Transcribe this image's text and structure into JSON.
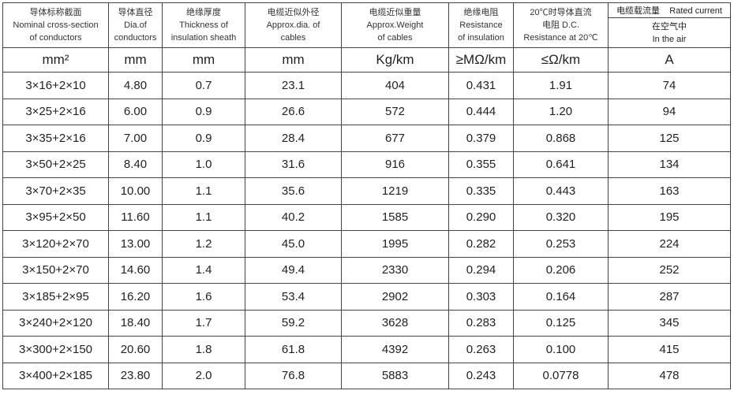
{
  "headers": [
    {
      "zh": "导体标称截面",
      "en1": "Nominal cross-section",
      "en2": "of conductors",
      "unit": "mm²"
    },
    {
      "zh": "导体直径",
      "en1": "Dia.of",
      "en2": "conductors",
      "unit": "mm"
    },
    {
      "zh": "绝缘厚度",
      "en1": "Thickness of",
      "en2": "insulation sheath",
      "unit": "mm"
    },
    {
      "zh": "电缆近似外径",
      "en1": "Approx.dia. of",
      "en2": "cables",
      "unit": "mm"
    },
    {
      "zh": "电缆近似重量",
      "en1": "Approx.Weight",
      "en2": "of cables",
      "unit": "Kg/km"
    },
    {
      "zh": "绝缘电阻",
      "en1": "Resistance",
      "en2": "of insulation",
      "unit": "≥MΩ/km"
    },
    {
      "zh": "20℃时导体直流",
      "en1": "电阻 D.C.",
      "en2": "Resistance at 20℃",
      "unit": "≤Ω/km"
    }
  ],
  "rated": {
    "title": "电缆载流量    Rated current",
    "zh": "在空气中",
    "en": "In the air",
    "unit": "A"
  },
  "rows": [
    [
      "3×16+2×10",
      "4.80",
      "0.7",
      "23.1",
      "404",
      "0.431",
      "1.91",
      "74"
    ],
    [
      "3×25+2×16",
      "6.00",
      "0.9",
      "26.6",
      "572",
      "0.444",
      "1.20",
      "94"
    ],
    [
      "3×35+2×16",
      "7.00",
      "0.9",
      "28.4",
      "677",
      "0.379",
      "0.868",
      "125"
    ],
    [
      "3×50+2×25",
      "8.40",
      "1.0",
      "31.6",
      "916",
      "0.355",
      "0.641",
      "134"
    ],
    [
      "3×70+2×35",
      "10.00",
      "1.1",
      "35.6",
      "1219",
      "0.335",
      "0.443",
      "163"
    ],
    [
      "3×95+2×50",
      "11.60",
      "1.1",
      "40.2",
      "1585",
      "0.290",
      "0.320",
      "195"
    ],
    [
      "3×120+2×70",
      "13.00",
      "1.2",
      "45.0",
      "1995",
      "0.282",
      "0.253",
      "224"
    ],
    [
      "3×150+2×70",
      "14.60",
      "1.4",
      "49.4",
      "2330",
      "0.294",
      "0.206",
      "252"
    ],
    [
      "3×185+2×95",
      "16.20",
      "1.6",
      "53.4",
      "2902",
      "0.303",
      "0.164",
      "287"
    ],
    [
      "3×240+2×120",
      "18.40",
      "1.7",
      "59.2",
      "3628",
      "0.283",
      "0.125",
      "345"
    ],
    [
      "3×300+2×150",
      "20.60",
      "1.8",
      "61.8",
      "4392",
      "0.263",
      "0.100",
      "415"
    ],
    [
      "3×400+2×185",
      "23.80",
      "2.0",
      "76.8",
      "5883",
      "0.243",
      "0.0778",
      "478"
    ]
  ]
}
